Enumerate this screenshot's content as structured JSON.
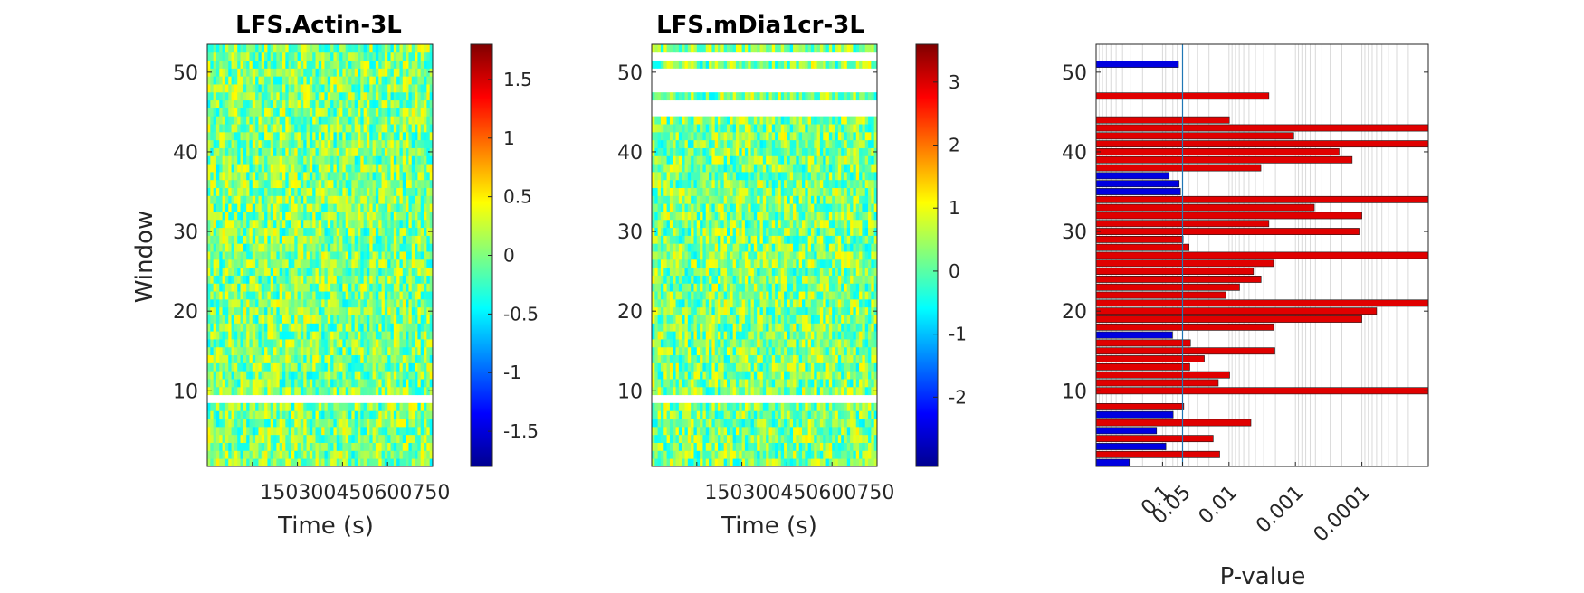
{
  "chart_data": [
    {
      "type": "heatmap",
      "title": "LFS.Actin-3L",
      "xlabel": "Time (s)",
      "ylabel": "Window",
      "x_ticks": [
        "150",
        "300",
        "450",
        "600",
        "750"
      ],
      "y_ticks": [
        10,
        20,
        30,
        40,
        50
      ],
      "ylim": [
        0.5,
        53.5
      ],
      "xlim": [
        0,
        750
      ],
      "missing_windows": [
        9
      ],
      "colormap": "jet",
      "clim": [
        -1.8,
        1.8
      ],
      "colorbar_ticks": [
        "1.5",
        "1",
        "0.5",
        "0",
        "-0.5",
        "-1",
        "-1.5"
      ],
      "colorbar_values": [
        1.5,
        1,
        0.5,
        0,
        -0.5,
        -1,
        -1.5
      ]
    },
    {
      "type": "heatmap",
      "title": "LFS.mDia1cr-3L",
      "xlabel": "Time (s)",
      "ylabel": "",
      "x_ticks": [
        "150",
        "300",
        "450",
        "600",
        "750"
      ],
      "y_ticks": [
        10,
        20,
        30,
        40,
        50
      ],
      "ylim": [
        0.5,
        53.5
      ],
      "xlim": [
        0,
        750
      ],
      "missing_windows": [
        9,
        45,
        46,
        48,
        49,
        50,
        52
      ],
      "colormap": "jet",
      "clim": [
        -3.1,
        3.6
      ],
      "colorbar_ticks": [
        "3",
        "2",
        "1",
        "0",
        "-1",
        "-2"
      ],
      "colorbar_values": [
        3,
        2,
        1,
        0,
        -1,
        -2
      ]
    },
    {
      "type": "bar",
      "orientation": "horizontal",
      "title": "",
      "xlabel": "P-value",
      "ylabel": "",
      "x_scale": "log (reversed, -log10 p)",
      "x_ticks": [
        "0.1",
        "0.05",
        "0.01",
        "0.001",
        "0.0001"
      ],
      "x_tick_values": [
        0.1,
        0.05,
        0.01,
        0.001,
        0.0001
      ],
      "threshold_line": 0.05,
      "y_ticks": [
        10,
        20,
        30,
        40,
        50
      ],
      "ylim": [
        0.5,
        53.5
      ],
      "xlim_p": [
        1,
        1e-05
      ],
      "colors": {
        "significant": "#e00000",
        "not_significant": "#0000e0"
      },
      "windows": [
        1,
        2,
        3,
        4,
        5,
        6,
        7,
        8,
        10,
        11,
        12,
        13,
        14,
        15,
        16,
        17,
        18,
        19,
        20,
        21,
        22,
        23,
        24,
        25,
        26,
        27,
        28,
        29,
        30,
        31,
        32,
        33,
        34,
        35,
        36,
        37,
        38,
        39,
        40,
        41,
        42,
        43,
        44,
        47,
        51
      ],
      "p_values": [
        0.316,
        0.0138,
        0.089,
        0.0173,
        0.123,
        0.00468,
        0.0692,
        0.0479,
        1e-05,
        0.0145,
        0.00977,
        0.0389,
        0.0235,
        0.00204,
        0.038,
        0.0708,
        0.00213,
        0.0001,
        6e-05,
        1e-05,
        0.0112,
        0.00693,
        0.00329,
        0.00428,
        0.00214,
        1e-05,
        0.0399,
        0.049,
        0.00011,
        0.00251,
        0.0001,
        0.00052,
        1e-05,
        0.0537,
        0.0562,
        0.0794,
        0.00331,
        0.00014,
        0.00022,
        1e-05,
        0.00106,
        1e-05,
        0.00987,
        0.00251,
        0.0575
      ]
    }
  ]
}
